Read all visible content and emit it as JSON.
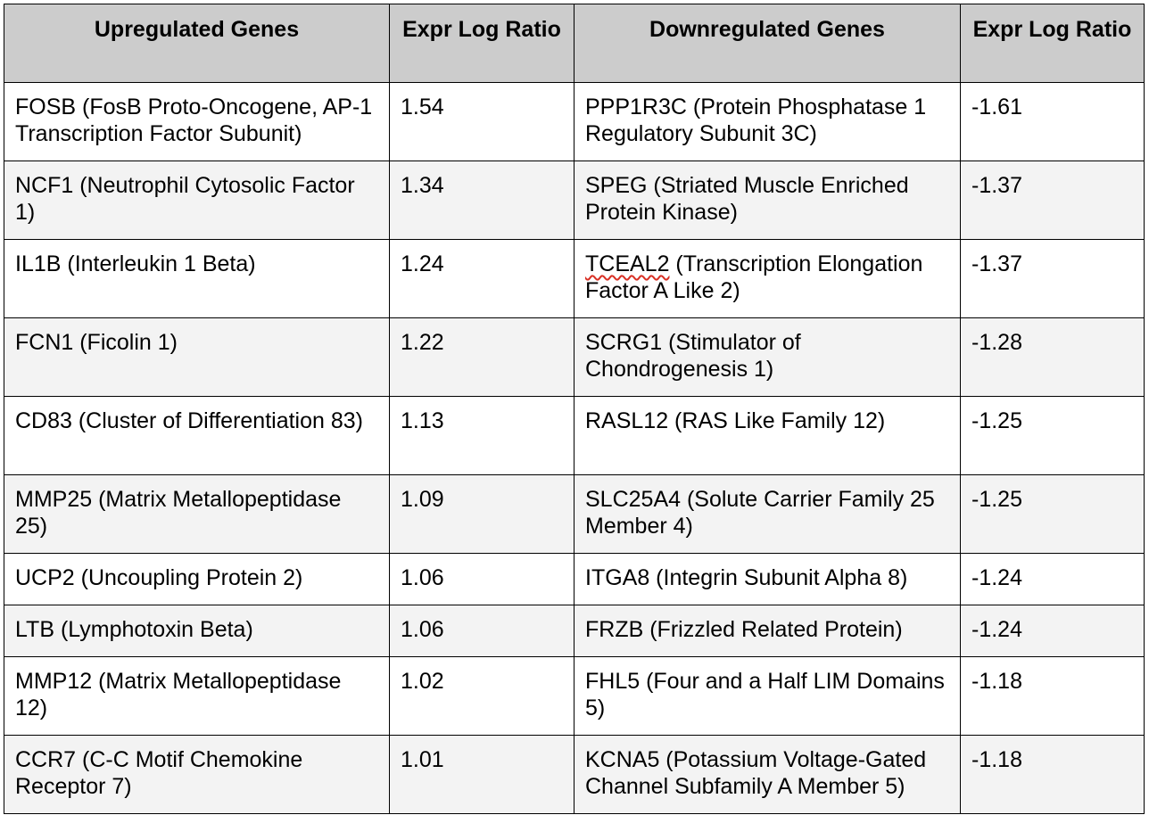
{
  "table": {
    "headers": [
      "Upregulated Genes",
      "Expr Log Ratio",
      "Downregulated Genes",
      "Expr Log Ratio"
    ],
    "rows": [
      {
        "up_gene": "FOSB (FosB Proto-Oncogene, AP-1 Transcription Factor Subunit)",
        "up_ratio": "1.54",
        "down_gene": "PPP1R3C (Protein Phosphatase 1 Regulatory Subunit 3C)",
        "down_ratio": "-1.61"
      },
      {
        "up_gene": "NCF1 (Neutrophil Cytosolic Factor 1)",
        "up_ratio": "1.34",
        "down_gene": "SPEG (Striated Muscle Enriched Protein Kinase)",
        "down_ratio": "-1.37"
      },
      {
        "up_gene": "IL1B (Interleukin 1 Beta)",
        "up_ratio": "1.24",
        "down_gene_symbol": "TCEAL2",
        "down_gene_desc": " (Transcription Elongation Factor A Like 2)",
        "down_ratio": "-1.37"
      },
      {
        "up_gene": "FCN1 (Ficolin 1)",
        "up_ratio": "1.22",
        "down_gene": "SCRG1 (Stimulator of Chondrogenesis 1)",
        "down_ratio": "-1.28"
      },
      {
        "up_gene": "CD83 (Cluster of Differentiation 83)",
        "up_ratio": "1.13",
        "down_gene": "RASL12 (RAS Like Family 12)",
        "down_ratio": "-1.25"
      },
      {
        "up_gene": "MMP25 (Matrix Metallopeptidase 25)",
        "up_ratio": "1.09",
        "down_gene": "SLC25A4 (Solute Carrier Family 25 Member 4)",
        "down_ratio": "-1.25"
      },
      {
        "up_gene": "UCP2 (Uncoupling Protein 2)",
        "up_ratio": "1.06",
        "down_gene": "ITGA8 (Integrin Subunit Alpha 8)",
        "down_ratio": "-1.24"
      },
      {
        "up_gene": "LTB (Lymphotoxin Beta)",
        "up_ratio": "1.06",
        "down_gene": "FRZB (Frizzled Related Protein)",
        "down_ratio": "-1.24"
      },
      {
        "up_gene": "MMP12 (Matrix Metallopeptidase 12)",
        "up_ratio": "1.02",
        "down_gene": "FHL5 (Four and a Half LIM Domains 5)",
        "down_ratio": "-1.18"
      },
      {
        "up_gene": "CCR7 (C-C Motif Chemokine Receptor 7)",
        "up_ratio": "1.01",
        "down_gene": "KCNA5 (Potassium Voltage-Gated Channel Subfamily A Member 5)",
        "down_ratio": "-1.18"
      }
    ]
  },
  "colors": {
    "header_background": "#cccccc",
    "alt_row_background": "#f3f3f3",
    "border": "#000000",
    "spellcheck_underline": "#d93025"
  }
}
